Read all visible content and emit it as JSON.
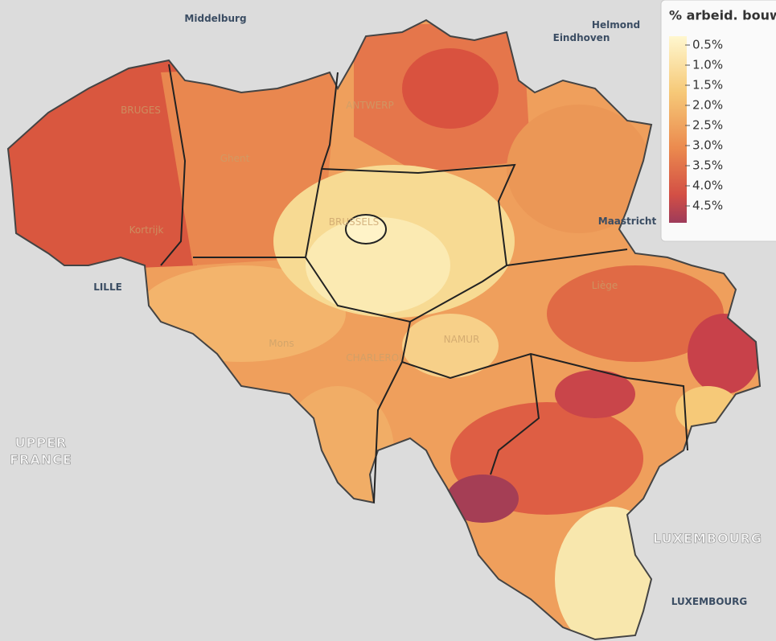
{
  "map": {
    "legend": {
      "title": "% arbeid. bouw",
      "ticks": [
        {
          "value": 0.5,
          "label": "0.5%"
        },
        {
          "value": 1.0,
          "label": "1.0%"
        },
        {
          "value": 1.5,
          "label": "1.5%"
        },
        {
          "value": 2.0,
          "label": "2.0%"
        },
        {
          "value": 2.5,
          "label": "2.5%"
        },
        {
          "value": 3.0,
          "label": "3.0%"
        },
        {
          "value": 3.5,
          "label": "3.5%"
        },
        {
          "value": 4.0,
          "label": "4.0%"
        },
        {
          "value": 4.5,
          "label": "4.5%"
        }
      ]
    },
    "places": [
      "Middelburg",
      "Helmond",
      "Eindhoven",
      "BRUGES",
      "ANTWERP",
      "Ghent",
      "Kortrijk",
      "LILLE",
      "BRUSSELS",
      "Mons",
      "CHARLEROI",
      "NAMUR",
      "Liège",
      "Maastricht",
      "UPPER FRANCE",
      "LUXEMBOURG",
      "LUXEMBOURG"
    ]
  }
}
